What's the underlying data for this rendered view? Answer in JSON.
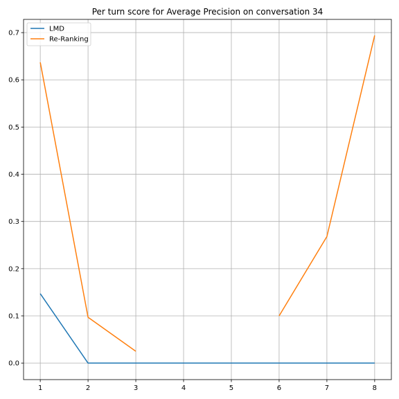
{
  "chart_data": {
    "type": "line",
    "title": "Per turn score for Average Precision on conversation 34",
    "xlabel": "",
    "ylabel": "",
    "x": [
      1,
      2,
      3,
      4,
      5,
      6,
      7,
      8
    ],
    "xticks": [
      "1",
      "2",
      "3",
      "4",
      "5",
      "6",
      "7",
      "8"
    ],
    "yticks": [
      "0.0",
      "0.1",
      "0.2",
      "0.3",
      "0.4",
      "0.5",
      "0.6",
      "0.7"
    ],
    "ytick_values": [
      0.0,
      0.1,
      0.2,
      0.3,
      0.4,
      0.5,
      0.6,
      0.7
    ],
    "xlim": [
      0.65,
      8.35
    ],
    "ylim": [
      -0.035,
      0.728
    ],
    "grid": true,
    "legend_position": "top-left",
    "series": [
      {
        "name": "LMD",
        "color": "#1f77b4",
        "values": [
          0.147,
          0.0,
          0.0,
          0.0,
          0.0,
          0.0,
          0.0,
          0.0
        ]
      },
      {
        "name": "Re-Ranking",
        "color": "#ff7f0e",
        "values": [
          0.637,
          0.097,
          0.025,
          null,
          null,
          0.1,
          0.268,
          0.694
        ]
      }
    ]
  }
}
